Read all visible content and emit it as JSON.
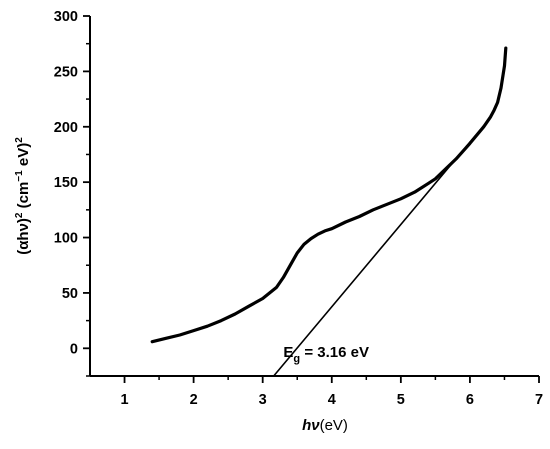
{
  "chart_data": {
    "type": "line",
    "x_axis": {
      "label_var": "hν",
      "label_unit": "(eV)",
      "range": [
        0.5,
        7
      ],
      "ticks": [
        1,
        2,
        3,
        4,
        5,
        6,
        7
      ],
      "tick_labels": [
        "1",
        "2",
        "3",
        "4",
        "5",
        "6",
        "7"
      ]
    },
    "y_axis": {
      "label_pre": "(αhν)",
      "label_mid": " (cm",
      "label_post": " eV)",
      "sup_2": "2",
      "sup_neg1": "−1",
      "range": [
        -25,
        300
      ],
      "ticks": [
        0,
        50,
        100,
        150,
        200,
        250,
        300
      ],
      "tick_labels": [
        "0",
        "50",
        "100",
        "150",
        "200",
        "250",
        "300"
      ]
    },
    "grid": false,
    "legend": "none",
    "series": [
      {
        "kind": "data",
        "color": "#000000",
        "x": [
          1.4,
          1.6,
          1.8,
          2.0,
          2.2,
          2.4,
          2.6,
          2.8,
          3.0,
          3.2,
          3.3,
          3.4,
          3.5,
          3.6,
          3.7,
          3.8,
          3.9,
          4.0,
          4.2,
          4.4,
          4.6,
          4.8,
          5.0,
          5.2,
          5.4,
          5.5,
          5.6,
          5.8,
          6.0,
          6.2,
          6.3,
          6.35,
          6.4,
          6.45,
          6.5,
          6.52
        ],
        "y": [
          6,
          9,
          12,
          16,
          20,
          25,
          31,
          38,
          45,
          55,
          64,
          75,
          86,
          94,
          99,
          103,
          106,
          108,
          114,
          119,
          125,
          130,
          135,
          141,
          149,
          153,
          159,
          171,
          185,
          200,
          209,
          215,
          222,
          235,
          255,
          271
        ]
      },
      {
        "kind": "fit",
        "color": "#000000",
        "x": [
          3.16,
          6.2
        ],
        "y": [
          -25,
          201
        ]
      }
    ],
    "annotations": [
      {
        "base": "E",
        "sub": "g",
        "rest": " = 3.16 eV",
        "x": 3.3,
        "y": -8
      }
    ]
  }
}
